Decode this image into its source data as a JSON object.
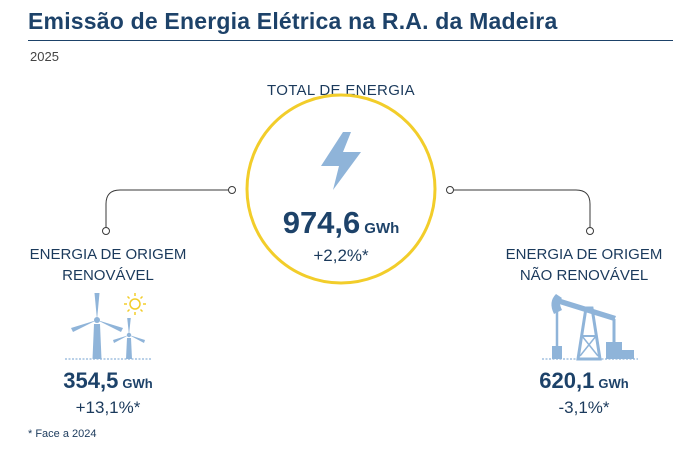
{
  "header": {
    "title": "Emissão de Energia Elétrica na R.A. da Madeira",
    "year": "2025"
  },
  "total": {
    "label": "TOTAL DE ENERGIA",
    "value": "974,6",
    "unit": "GWh",
    "change": "+2,2%*",
    "icon": "lightning-bolt-icon"
  },
  "renewable": {
    "label_line1": "ENERGIA DE ORIGEM",
    "label_line2": "RENOVÁVEL",
    "value": "354,5",
    "unit": "GWh",
    "change": "+13,1%*",
    "icon": "wind-turbines-sun-icon"
  },
  "non_renewable": {
    "label_line1": "ENERGIA DE ORIGEM",
    "label_line2": "NÃO RENOVÁVEL",
    "value": "620,1",
    "unit": "GWh",
    "change": "-3,1%*",
    "icon": "oil-pump-icon"
  },
  "footnote": "* Face a 2024",
  "colors": {
    "title": "#1d4269",
    "accent_yellow": "#f2cd2a",
    "icon_blue": "#8fb4d9",
    "connector": "#3a3a3a"
  }
}
